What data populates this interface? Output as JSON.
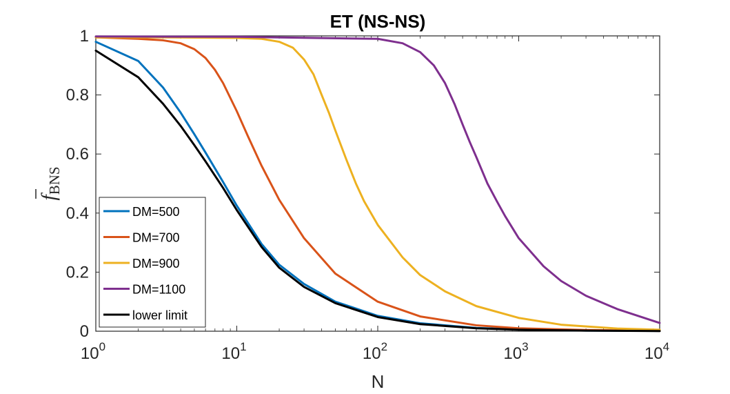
{
  "chart_data": {
    "type": "line",
    "title": "ET (NS-NS)",
    "xlabel": "N",
    "ylabel": "f",
    "ylabel_sub": "BNS",
    "xscale": "log",
    "xlim": [
      1,
      10000
    ],
    "ylim": [
      0,
      1
    ],
    "x_ticks": [
      {
        "base": "10",
        "exp": "0",
        "value": 1
      },
      {
        "base": "10",
        "exp": "1",
        "value": 10
      },
      {
        "base": "10",
        "exp": "2",
        "value": 100
      },
      {
        "base": "10",
        "exp": "3",
        "value": 1000
      },
      {
        "base": "10",
        "exp": "4",
        "value": 10000
      }
    ],
    "y_ticks": [
      {
        "label": "0",
        "value": 0
      },
      {
        "label": "0.2",
        "value": 0.2
      },
      {
        "label": "0.4",
        "value": 0.4
      },
      {
        "label": "0.6",
        "value": 0.6
      },
      {
        "label": "0.8",
        "value": 0.8
      },
      {
        "label": "1",
        "value": 1
      }
    ],
    "grid": false,
    "legend_position": "bottom-left",
    "series": [
      {
        "name": "DM=500",
        "color": "#0072BD",
        "x": [
          1,
          2,
          3,
          4,
          5,
          6,
          8,
          10,
          15,
          20,
          30,
          50,
          100,
          200,
          500,
          1000,
          3000,
          10000
        ],
        "y": [
          0.98,
          0.915,
          0.825,
          0.74,
          0.667,
          0.605,
          0.505,
          0.425,
          0.295,
          0.225,
          0.16,
          0.1,
          0.052,
          0.027,
          0.011,
          0.006,
          0.002,
          0.001
        ]
      },
      {
        "name": "DM=700",
        "color": "#D95319",
        "x": [
          1,
          2,
          3,
          4,
          5,
          6,
          7,
          8,
          10,
          12,
          15,
          20,
          30,
          50,
          100,
          200,
          500,
          1000,
          3000,
          10000
        ],
        "y": [
          0.995,
          0.99,
          0.985,
          0.975,
          0.955,
          0.925,
          0.885,
          0.84,
          0.745,
          0.66,
          0.56,
          0.445,
          0.315,
          0.195,
          0.1,
          0.05,
          0.02,
          0.01,
          0.004,
          0.001
        ]
      },
      {
        "name": "DM=900",
        "color": "#EDB120",
        "x": [
          1,
          3,
          10,
          15,
          20,
          25,
          30,
          35,
          40,
          45,
          50,
          60,
          70,
          80,
          100,
          150,
          200,
          300,
          500,
          1000,
          2000,
          5000,
          10000
        ],
        "y": [
          0.995,
          0.995,
          0.993,
          0.99,
          0.98,
          0.96,
          0.92,
          0.87,
          0.8,
          0.74,
          0.68,
          0.58,
          0.5,
          0.44,
          0.36,
          0.25,
          0.19,
          0.135,
          0.085,
          0.045,
          0.022,
          0.009,
          0.005
        ]
      },
      {
        "name": "DM=1100",
        "color": "#7E2F8E",
        "x": [
          1,
          10,
          100,
          150,
          200,
          250,
          300,
          350,
          400,
          450,
          500,
          600,
          700,
          800,
          1000,
          1500,
          2000,
          3000,
          5000,
          10000
        ],
        "y": [
          0.998,
          0.997,
          0.99,
          0.975,
          0.945,
          0.9,
          0.84,
          0.77,
          0.7,
          0.64,
          0.59,
          0.5,
          0.44,
          0.39,
          0.315,
          0.22,
          0.17,
          0.12,
          0.075,
          0.028
        ]
      },
      {
        "name": "lower limit",
        "color": "#000000",
        "x": [
          1,
          2,
          3,
          4,
          5,
          6,
          8,
          10,
          15,
          20,
          30,
          50,
          100,
          200,
          500,
          1000,
          3000,
          10000
        ],
        "y": [
          0.95,
          0.86,
          0.77,
          0.695,
          0.63,
          0.575,
          0.485,
          0.41,
          0.285,
          0.215,
          0.15,
          0.095,
          0.048,
          0.024,
          0.01,
          0.005,
          0.002,
          0.0005
        ]
      }
    ]
  }
}
